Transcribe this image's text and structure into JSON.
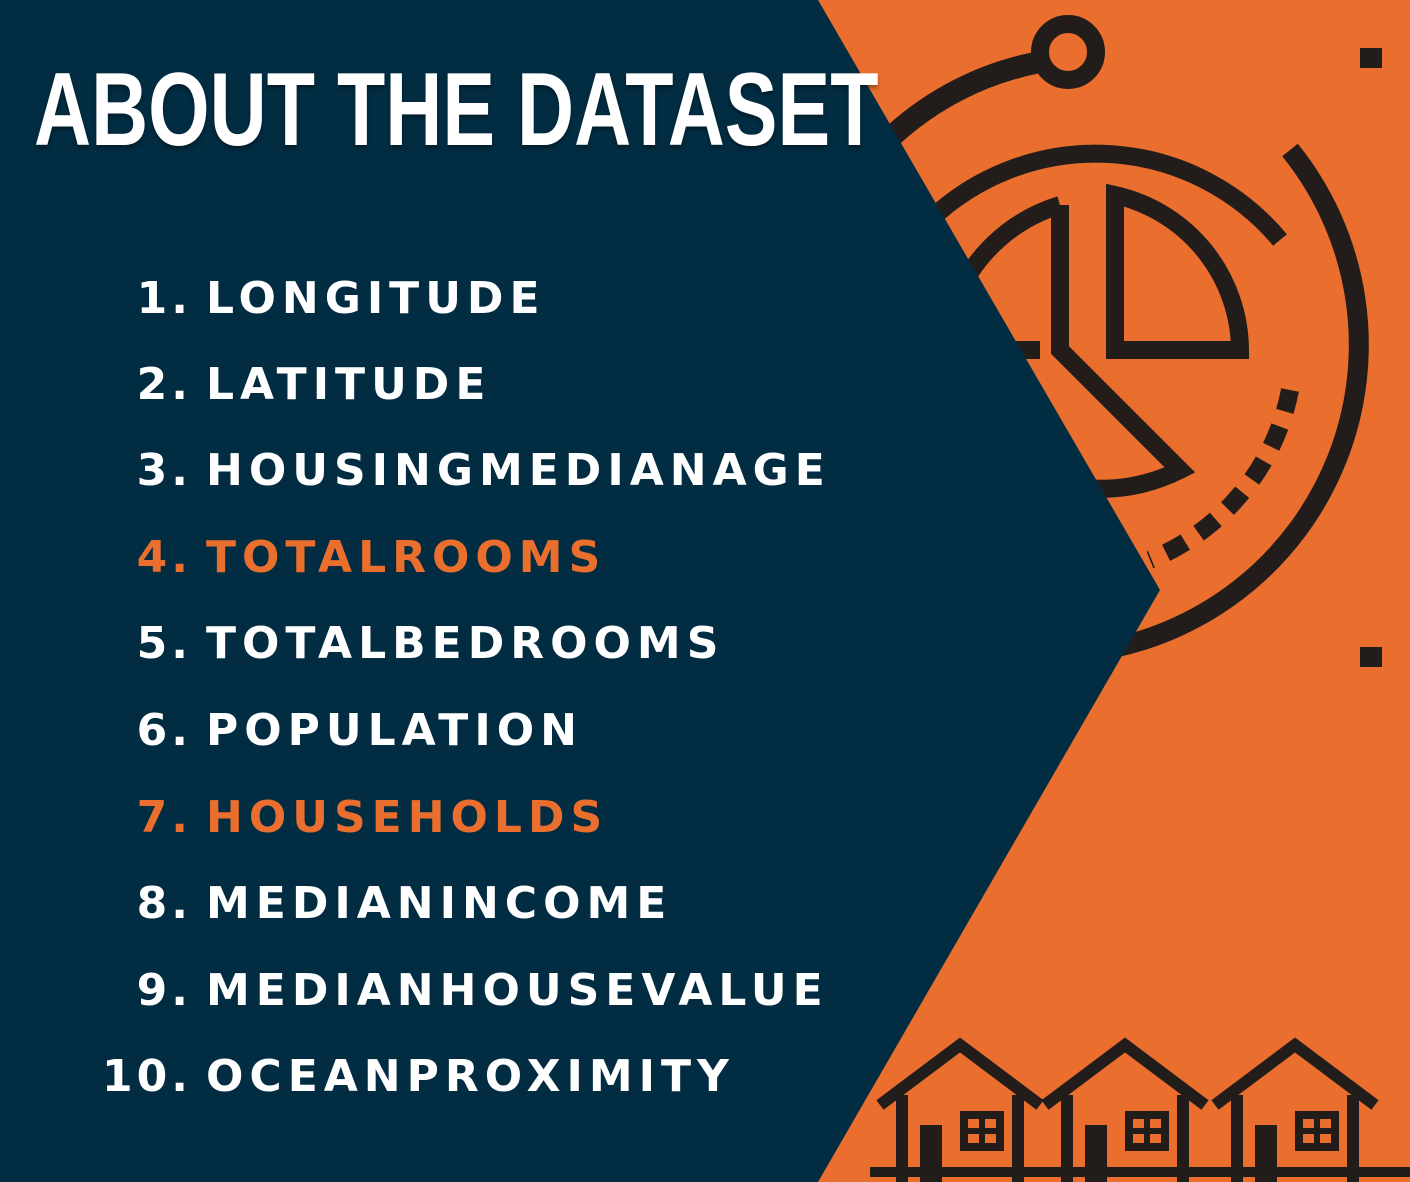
{
  "colors": {
    "background_orange": "#ea6e2d",
    "panel_navy": "#022c41",
    "text_white": "#ffffff",
    "highlight_orange": "#ea6e2d",
    "icon_dark": "#221d1b"
  },
  "title": "ABOUT THE DATASET",
  "icons": [
    "pie-chart-icon",
    "house-icon"
  ],
  "items": [
    {
      "num": "1.",
      "label": "LONGITUDE",
      "highlighted": false
    },
    {
      "num": "2.",
      "label": "LATITUDE",
      "highlighted": false
    },
    {
      "num": "3.",
      "label": "HOUSINGMEDIANAGE",
      "highlighted": false
    },
    {
      "num": "4.",
      "label": "TOTALROOMS",
      "highlighted": true
    },
    {
      "num": "5.",
      "label": "TOTALBEDROOMS",
      "highlighted": false
    },
    {
      "num": "6.",
      "label": "POPULATION",
      "highlighted": false
    },
    {
      "num": "7.",
      "label": "HOUSEHOLDS",
      "highlighted": true
    },
    {
      "num": "8.",
      "label": "MEDIANINCOME",
      "highlighted": false
    },
    {
      "num": "9.",
      "label": "MEDIANHOUSEVALUE",
      "highlighted": false
    },
    {
      "num": "10.",
      "label": "OCEANPROXIMITY",
      "highlighted": false
    }
  ]
}
